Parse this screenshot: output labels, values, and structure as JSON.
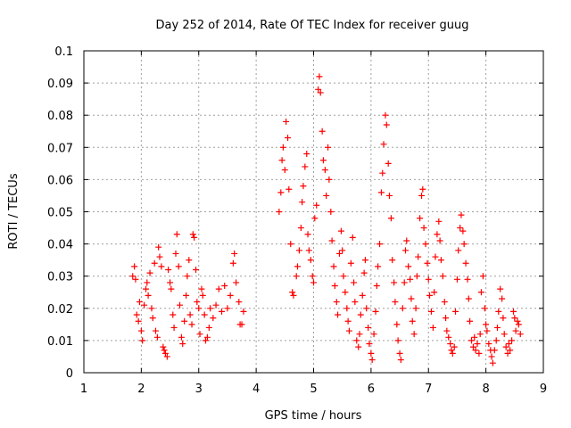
{
  "chart_data": {
    "type": "scatter",
    "title": "Day 252 of 2014, Rate Of TEC Index for receiver guug",
    "xlabel": "GPS time / hours",
    "ylabel": "ROTI / TECUs",
    "xlim": [
      1,
      9
    ],
    "ylim": [
      0,
      0.1
    ],
    "x_ticks": [
      "1",
      "2",
      "3",
      "4",
      "5",
      "6",
      "7",
      "8",
      "9"
    ],
    "y_ticks": [
      "0",
      "0.01",
      "0.02",
      "0.03",
      "0.04",
      "0.05",
      "0.06",
      "0.07",
      "0.08",
      "0.09",
      "0.1"
    ],
    "grid": true,
    "marker": "+",
    "color": "#ff0000",
    "series": [
      {
        "points": [
          [
            1.85,
            0.03
          ],
          [
            1.88,
            0.033
          ],
          [
            1.9,
            0.029
          ],
          [
            1.92,
            0.018
          ],
          [
            1.95,
            0.016
          ],
          [
            1.97,
            0.022
          ],
          [
            2.0,
            0.013
          ],
          [
            2.02,
            0.01
          ],
          [
            2.05,
            0.021
          ],
          [
            2.08,
            0.026
          ],
          [
            2.1,
            0.028
          ],
          [
            2.12,
            0.024
          ],
          [
            2.15,
            0.031
          ],
          [
            2.18,
            0.02
          ],
          [
            2.2,
            0.017
          ],
          [
            2.23,
            0.034
          ],
          [
            2.25,
            0.013
          ],
          [
            2.28,
            0.011
          ],
          [
            2.3,
            0.039
          ],
          [
            2.32,
            0.036
          ],
          [
            2.35,
            0.033
          ],
          [
            2.38,
            0.008
          ],
          [
            2.4,
            0.007
          ],
          [
            2.42,
            0.006
          ],
          [
            2.45,
            0.005
          ],
          [
            2.47,
            0.032
          ],
          [
            2.5,
            0.028
          ],
          [
            2.52,
            0.026
          ],
          [
            2.55,
            0.018
          ],
          [
            2.57,
            0.014
          ],
          [
            2.6,
            0.037
          ],
          [
            2.62,
            0.043
          ],
          [
            2.65,
            0.033
          ],
          [
            2.67,
            0.021
          ],
          [
            2.7,
            0.011
          ],
          [
            2.72,
            0.009
          ],
          [
            2.75,
            0.016
          ],
          [
            2.78,
            0.024
          ],
          [
            2.8,
            0.03
          ],
          [
            2.83,
            0.035
          ],
          [
            2.85,
            0.018
          ],
          [
            2.88,
            0.015
          ],
          [
            2.9,
            0.043
          ],
          [
            2.92,
            0.042
          ],
          [
            2.95,
            0.032
          ],
          [
            2.97,
            0.022
          ],
          [
            3.0,
            0.02
          ],
          [
            3.02,
            0.012
          ],
          [
            3.05,
            0.026
          ],
          [
            3.07,
            0.024
          ],
          [
            3.1,
            0.018
          ],
          [
            3.12,
            0.01
          ],
          [
            3.15,
            0.011
          ],
          [
            3.18,
            0.014
          ],
          [
            3.2,
            0.02
          ],
          [
            3.25,
            0.017
          ],
          [
            3.3,
            0.021
          ],
          [
            3.35,
            0.026
          ],
          [
            3.4,
            0.019
          ],
          [
            3.45,
            0.027
          ],
          [
            3.5,
            0.02
          ],
          [
            3.55,
            0.024
          ],
          [
            3.6,
            0.034
          ],
          [
            3.62,
            0.037
          ],
          [
            3.65,
            0.028
          ],
          [
            3.7,
            0.022
          ],
          [
            3.72,
            0.015
          ],
          [
            3.75,
            0.015
          ],
          [
            3.78,
            0.019
          ],
          [
            4.4,
            0.05
          ],
          [
            4.43,
            0.056
          ],
          [
            4.45,
            0.066
          ],
          [
            4.47,
            0.07
          ],
          [
            4.5,
            0.063
          ],
          [
            4.52,
            0.078
          ],
          [
            4.55,
            0.073
          ],
          [
            4.57,
            0.057
          ],
          [
            4.6,
            0.04
          ],
          [
            4.63,
            0.025
          ],
          [
            4.65,
            0.024
          ],
          [
            4.7,
            0.03
          ],
          [
            4.72,
            0.033
          ],
          [
            4.75,
            0.038
          ],
          [
            4.78,
            0.045
          ],
          [
            4.8,
            0.053
          ],
          [
            4.82,
            0.058
          ],
          [
            4.85,
            0.064
          ],
          [
            4.88,
            0.068
          ],
          [
            4.9,
            0.043
          ],
          [
            4.92,
            0.038
          ],
          [
            4.95,
            0.035
          ],
          [
            4.98,
            0.03
          ],
          [
            5.0,
            0.028
          ],
          [
            5.02,
            0.048
          ],
          [
            5.05,
            0.052
          ],
          [
            5.08,
            0.088
          ],
          [
            5.1,
            0.092
          ],
          [
            5.12,
            0.087
          ],
          [
            5.15,
            0.075
          ],
          [
            5.17,
            0.066
          ],
          [
            5.2,
            0.063
          ],
          [
            5.22,
            0.055
          ],
          [
            5.25,
            0.07
          ],
          [
            5.27,
            0.06
          ],
          [
            5.3,
            0.05
          ],
          [
            5.32,
            0.041
          ],
          [
            5.35,
            0.033
          ],
          [
            5.37,
            0.027
          ],
          [
            5.4,
            0.022
          ],
          [
            5.42,
            0.018
          ],
          [
            5.45,
            0.037
          ],
          [
            5.48,
            0.044
          ],
          [
            5.5,
            0.038
          ],
          [
            5.52,
            0.03
          ],
          [
            5.55,
            0.025
          ],
          [
            5.58,
            0.02
          ],
          [
            5.6,
            0.016
          ],
          [
            5.62,
            0.013
          ],
          [
            5.65,
            0.034
          ],
          [
            5.68,
            0.042
          ],
          [
            5.7,
            0.028
          ],
          [
            5.72,
            0.022
          ],
          [
            5.75,
            0.01
          ],
          [
            5.78,
            0.008
          ],
          [
            5.8,
            0.012
          ],
          [
            5.82,
            0.018
          ],
          [
            5.85,
            0.024
          ],
          [
            5.88,
            0.031
          ],
          [
            5.9,
            0.035
          ],
          [
            5.92,
            0.02
          ],
          [
            5.95,
            0.014
          ],
          [
            5.97,
            0.009
          ],
          [
            6.0,
            0.006
          ],
          [
            6.02,
            0.004
          ],
          [
            6.05,
            0.012
          ],
          [
            6.08,
            0.019
          ],
          [
            6.1,
            0.027
          ],
          [
            6.12,
            0.033
          ],
          [
            6.15,
            0.04
          ],
          [
            6.18,
            0.056
          ],
          [
            6.2,
            0.062
          ],
          [
            6.22,
            0.071
          ],
          [
            6.25,
            0.08
          ],
          [
            6.27,
            0.077
          ],
          [
            6.3,
            0.065
          ],
          [
            6.32,
            0.055
          ],
          [
            6.35,
            0.048
          ],
          [
            6.37,
            0.035
          ],
          [
            6.4,
            0.028
          ],
          [
            6.42,
            0.022
          ],
          [
            6.45,
            0.015
          ],
          [
            6.47,
            0.01
          ],
          [
            6.5,
            0.006
          ],
          [
            6.52,
            0.004
          ],
          [
            6.55,
            0.02
          ],
          [
            6.58,
            0.028
          ],
          [
            6.6,
            0.038
          ],
          [
            6.62,
            0.041
          ],
          [
            6.65,
            0.033
          ],
          [
            6.68,
            0.029
          ],
          [
            6.7,
            0.023
          ],
          [
            6.72,
            0.016
          ],
          [
            6.75,
            0.012
          ],
          [
            6.78,
            0.02
          ],
          [
            6.8,
            0.03
          ],
          [
            6.82,
            0.036
          ],
          [
            6.85,
            0.048
          ],
          [
            6.88,
            0.055
          ],
          [
            6.9,
            0.057
          ],
          [
            6.92,
            0.045
          ],
          [
            6.95,
            0.04
          ],
          [
            6.98,
            0.034
          ],
          [
            7.0,
            0.029
          ],
          [
            7.02,
            0.024
          ],
          [
            7.05,
            0.019
          ],
          [
            7.08,
            0.014
          ],
          [
            7.1,
            0.025
          ],
          [
            7.12,
            0.036
          ],
          [
            7.15,
            0.043
          ],
          [
            7.18,
            0.047
          ],
          [
            7.2,
            0.041
          ],
          [
            7.22,
            0.035
          ],
          [
            7.25,
            0.03
          ],
          [
            7.28,
            0.022
          ],
          [
            7.3,
            0.017
          ],
          [
            7.32,
            0.013
          ],
          [
            7.35,
            0.011
          ],
          [
            7.38,
            0.009
          ],
          [
            7.4,
            0.007
          ],
          [
            7.42,
            0.006
          ],
          [
            7.45,
            0.008
          ],
          [
            7.47,
            0.019
          ],
          [
            7.5,
            0.029
          ],
          [
            7.52,
            0.038
          ],
          [
            7.55,
            0.045
          ],
          [
            7.57,
            0.049
          ],
          [
            7.6,
            0.044
          ],
          [
            7.62,
            0.04
          ],
          [
            7.65,
            0.034
          ],
          [
            7.68,
            0.029
          ],
          [
            7.7,
            0.023
          ],
          [
            7.72,
            0.016
          ],
          [
            7.75,
            0.01
          ],
          [
            7.78,
            0.008
          ],
          [
            7.8,
            0.011
          ],
          [
            7.82,
            0.007
          ],
          [
            7.85,
            0.009
          ],
          [
            7.88,
            0.006
          ],
          [
            7.9,
            0.012
          ],
          [
            7.92,
            0.025
          ],
          [
            7.95,
            0.03
          ],
          [
            7.98,
            0.02
          ],
          [
            8.0,
            0.015
          ],
          [
            8.02,
            0.013
          ],
          [
            8.05,
            0.009
          ],
          [
            8.08,
            0.007
          ],
          [
            8.1,
            0.005
          ],
          [
            8.12,
            0.003
          ],
          [
            8.15,
            0.007
          ],
          [
            8.18,
            0.01
          ],
          [
            8.2,
            0.014
          ],
          [
            8.22,
            0.019
          ],
          [
            8.25,
            0.026
          ],
          [
            8.28,
            0.023
          ],
          [
            8.3,
            0.017
          ],
          [
            8.32,
            0.012
          ],
          [
            8.35,
            0.008
          ],
          [
            8.38,
            0.006
          ],
          [
            8.4,
            0.009
          ],
          [
            8.42,
            0.007
          ],
          [
            8.45,
            0.01
          ],
          [
            8.48,
            0.019
          ],
          [
            8.5,
            0.017
          ],
          [
            8.52,
            0.013
          ],
          [
            8.55,
            0.016
          ],
          [
            8.57,
            0.015
          ],
          [
            8.6,
            0.012
          ]
        ]
      }
    ]
  }
}
